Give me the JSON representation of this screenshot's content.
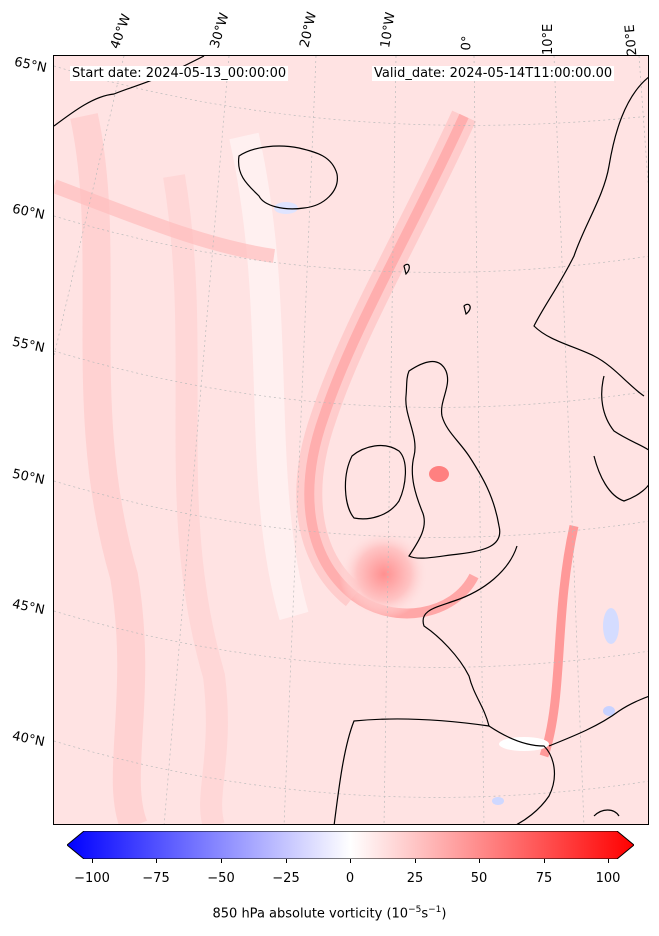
{
  "header": {
    "start_date": "Start date: 2024-05-13_00:00:00",
    "valid_date": "Valid_date: 2024-05-14T11:00:00.00"
  },
  "longitude_labels": [
    "40°W",
    "30°W",
    "20°W",
    "10°W",
    "0°",
    "10°E",
    "20°E"
  ],
  "latitude_labels": [
    "65°N",
    "60°N",
    "55°N",
    "50°N",
    "45°N",
    "40°N"
  ],
  "colorbar": {
    "ticks": [
      "−100",
      "−75",
      "−50",
      "−25",
      "0",
      "25",
      "50",
      "75",
      "100"
    ],
    "label_text": "850 hPa absolute vorticity (10",
    "label_exp1": "−5",
    "label_mid": "s",
    "label_exp2": "−1",
    "label_end": ")",
    "min_color": "#0000ff",
    "mid_color": "#ffffff",
    "max_color": "#ff0000"
  },
  "colors": {
    "background_field": "#ffe6e6",
    "coastline": "#000000",
    "gridline": "#bbbbbb"
  }
}
